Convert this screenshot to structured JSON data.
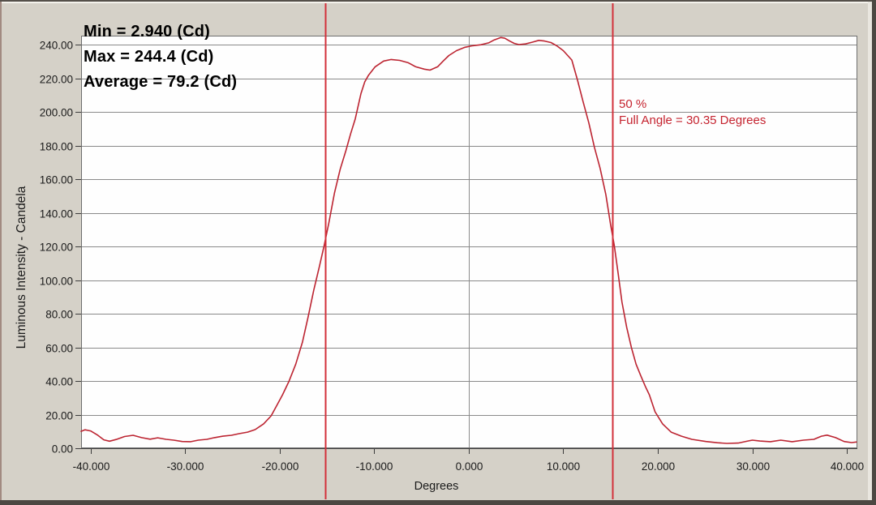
{
  "window": {
    "background_color": "#d5d1c8",
    "plot_background_color": "#fefefe"
  },
  "stats": {
    "min": "Min = 2.940 (Cd)",
    "max": "Max = 244.4 (Cd)",
    "average": "Average = 79.2 (Cd)"
  },
  "cursor_annotation": {
    "line1": "50 %",
    "line2": "Full Angle = 30.35 Degrees",
    "color": "#c5232f"
  },
  "chart_data": {
    "type": "line",
    "title": "",
    "xlabel": "Degrees",
    "ylabel": "Luminous Intensity - Candela",
    "xlim": [
      -41,
      41.1
    ],
    "ylim": [
      0,
      245.5
    ],
    "grid": "horizontal every 20 Cd, vertical only at 0 degrees",
    "grid_color": "#8a8a8a",
    "x_ticks": [
      -40,
      -30,
      -20,
      -10,
      0,
      10,
      20,
      30,
      40
    ],
    "x_tick_labels": [
      "-40.000",
      "-30.000",
      "-20.000",
      "-10.000",
      "0.000",
      "10.000",
      "20.000",
      "30.000",
      "40.000"
    ],
    "x_gridlines": [
      0
    ],
    "y_ticks": [
      0,
      20,
      40,
      60,
      80,
      100,
      120,
      140,
      160,
      180,
      200,
      220,
      240
    ],
    "y_tick_labels": [
      "0.00",
      "20.00",
      "40.00",
      "60.00",
      "80.00",
      "100.00",
      "120.00",
      "140.00",
      "160.00",
      "180.00",
      "200.00",
      "220.00",
      "240.00"
    ],
    "legend": "none",
    "stats_values": {
      "min_cd": 2.94,
      "max_cd": 244.4,
      "average_cd": 79.2,
      "level_percent": 50,
      "full_angle_degrees": 30.35
    },
    "cursors": {
      "x_values": [
        -15.175,
        15.175
      ],
      "color": "#d2303a",
      "meaning": "50% intensity beam-width cursors, full angle = 30.35 degrees"
    },
    "series": [
      {
        "name": "luminous-intensity-profile",
        "color": "#bc2431",
        "points": [
          [
            -41.0,
            10.1
          ],
          [
            -40.6,
            11.0
          ],
          [
            -40.0,
            10.3
          ],
          [
            -39.3,
            8.0
          ],
          [
            -38.6,
            5.0
          ],
          [
            -38.0,
            4.2
          ],
          [
            -37.3,
            5.2
          ],
          [
            -36.4,
            7.0
          ],
          [
            -35.5,
            7.7
          ],
          [
            -34.6,
            6.3
          ],
          [
            -33.7,
            5.4
          ],
          [
            -32.9,
            6.2
          ],
          [
            -32.0,
            5.3
          ],
          [
            -31.2,
            4.8
          ],
          [
            -30.3,
            4.0
          ],
          [
            -29.4,
            3.9
          ],
          [
            -28.6,
            4.8
          ],
          [
            -27.7,
            5.3
          ],
          [
            -26.9,
            6.3
          ],
          [
            -26.0,
            7.2
          ],
          [
            -25.1,
            7.7
          ],
          [
            -24.3,
            8.7
          ],
          [
            -23.4,
            9.6
          ],
          [
            -22.6,
            11.1
          ],
          [
            -21.7,
            14.5
          ],
          [
            -20.9,
            19.3
          ],
          [
            -20.3,
            25.5
          ],
          [
            -19.7,
            31.8
          ],
          [
            -19.0,
            40.0
          ],
          [
            -18.3,
            50.0
          ],
          [
            -17.6,
            63.0
          ],
          [
            -17.0,
            78.0
          ],
          [
            -16.4,
            94.0
          ],
          [
            -15.8,
            108.0
          ],
          [
            -15.3,
            120.5
          ],
          [
            -14.8,
            134.0
          ],
          [
            -14.2,
            152.0
          ],
          [
            -13.6,
            166.0
          ],
          [
            -13.0,
            177.0
          ],
          [
            -12.5,
            187.0
          ],
          [
            -12.0,
            196.0
          ],
          [
            -11.4,
            211.0
          ],
          [
            -11.0,
            218.0
          ],
          [
            -10.6,
            222.0
          ],
          [
            -9.9,
            227.0
          ],
          [
            -9.0,
            230.4
          ],
          [
            -8.2,
            231.3
          ],
          [
            -7.3,
            230.8
          ],
          [
            -6.4,
            229.4
          ],
          [
            -5.6,
            227.0
          ],
          [
            -4.7,
            225.6
          ],
          [
            -4.1,
            225.0
          ],
          [
            -3.3,
            227.0
          ],
          [
            -2.7,
            230.4
          ],
          [
            -2.1,
            233.7
          ],
          [
            -1.3,
            236.6
          ],
          [
            -0.4,
            238.6
          ],
          [
            0.4,
            239.5
          ],
          [
            1.3,
            240.1
          ],
          [
            2.1,
            241.2
          ],
          [
            2.7,
            243.0
          ],
          [
            3.4,
            244.4
          ],
          [
            3.8,
            244.0
          ],
          [
            4.3,
            242.4
          ],
          [
            4.8,
            240.9
          ],
          [
            5.3,
            240.2
          ],
          [
            6.0,
            240.6
          ],
          [
            6.7,
            241.6
          ],
          [
            7.4,
            242.7
          ],
          [
            8.0,
            242.3
          ],
          [
            8.7,
            241.4
          ],
          [
            9.3,
            239.5
          ],
          [
            10.0,
            236.6
          ],
          [
            10.9,
            231.0
          ],
          [
            11.5,
            219.0
          ],
          [
            12.1,
            206.0
          ],
          [
            12.7,
            193.5
          ],
          [
            13.3,
            179.0
          ],
          [
            13.9,
            166.5
          ],
          [
            14.5,
            151.0
          ],
          [
            15.0,
            133.0
          ],
          [
            15.4,
            120.5
          ],
          [
            15.8,
            104.0
          ],
          [
            16.2,
            87.0
          ],
          [
            16.7,
            72.0
          ],
          [
            17.2,
            60.0
          ],
          [
            17.7,
            50.0
          ],
          [
            18.2,
            43.0
          ],
          [
            18.7,
            36.5
          ],
          [
            19.1,
            31.8
          ],
          [
            19.7,
            21.7
          ],
          [
            20.5,
            14.5
          ],
          [
            21.4,
            9.6
          ],
          [
            22.5,
            7.2
          ],
          [
            23.6,
            5.3
          ],
          [
            25.1,
            4.0
          ],
          [
            26.3,
            3.3
          ],
          [
            27.3,
            2.9
          ],
          [
            28.5,
            3.1
          ],
          [
            29.5,
            4.3
          ],
          [
            30.0,
            4.8
          ],
          [
            30.8,
            4.3
          ],
          [
            31.9,
            3.9
          ],
          [
            33.0,
            4.8
          ],
          [
            34.2,
            3.9
          ],
          [
            35.4,
            4.8
          ],
          [
            36.5,
            5.3
          ],
          [
            37.3,
            7.2
          ],
          [
            37.9,
            7.8
          ],
          [
            38.8,
            6.3
          ],
          [
            39.7,
            4.0
          ],
          [
            40.5,
            3.4
          ],
          [
            41.0,
            3.7
          ]
        ]
      }
    ]
  }
}
